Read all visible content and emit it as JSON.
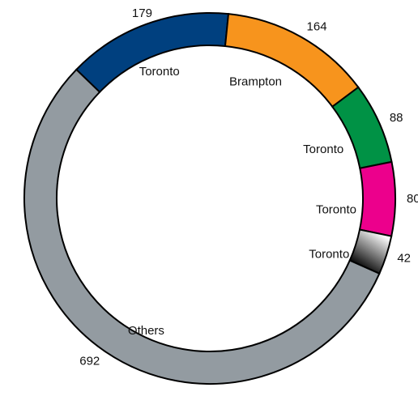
{
  "chart_data": {
    "type": "donut",
    "categories": [
      "Toronto",
      "Brampton",
      "Toronto",
      "Toronto",
      "Toronto",
      "Others"
    ],
    "values": [
      179,
      164,
      88,
      80,
      42,
      692
    ],
    "colors": [
      "#00407f",
      "#f7941d",
      "#009245",
      "#ec008c",
      "url(#grad)",
      "#939ba1"
    ]
  }
}
